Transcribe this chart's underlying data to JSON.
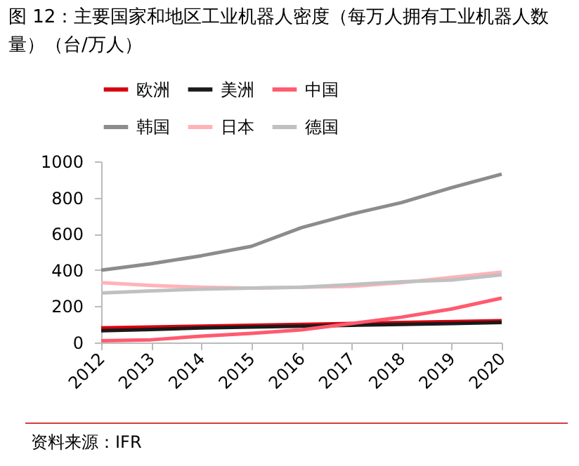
{
  "chart_data": {
    "type": "line",
    "title": "图 12：主要国家和地区工业机器人密度（每万人拥有工业机器人数量）（台/万人）",
    "categories": [
      "2012",
      "2013",
      "2014",
      "2015",
      "2016",
      "2017",
      "2018",
      "2019",
      "2020"
    ],
    "series": [
      {
        "name": "欧洲",
        "color": "#d7000f",
        "values": [
          80,
          85,
          90,
          95,
          100,
          105,
          110,
          115,
          120
        ]
      },
      {
        "name": "美洲",
        "color": "#1a1a1a",
        "values": [
          65,
          72,
          80,
          85,
          90,
          95,
          100,
          105,
          110
        ]
      },
      {
        "name": "中国",
        "color": "#ff5a6e",
        "values": [
          10,
          15,
          35,
          50,
          70,
          105,
          140,
          185,
          245
        ]
      },
      {
        "name": "韩国",
        "color": "#8c8c8c",
        "values": [
          399,
          435,
          479,
          531,
          634,
          709,
          773,
          855,
          930
        ]
      },
      {
        "name": "日本",
        "color": "#ffb3b8",
        "values": [
          330,
          315,
          305,
          300,
          305,
          310,
          330,
          360,
          389
        ]
      },
      {
        "name": "德国",
        "color": "#c0c0c0",
        "values": [
          273,
          285,
          295,
          300,
          305,
          320,
          335,
          345,
          374
        ]
      }
    ],
    "ylim": [
      0,
      1000
    ],
    "yticks": [
      0,
      200,
      400,
      600,
      800,
      1000
    ],
    "grid": false,
    "legend": "top",
    "annotations": [
      "资料来源：IFR"
    ]
  }
}
